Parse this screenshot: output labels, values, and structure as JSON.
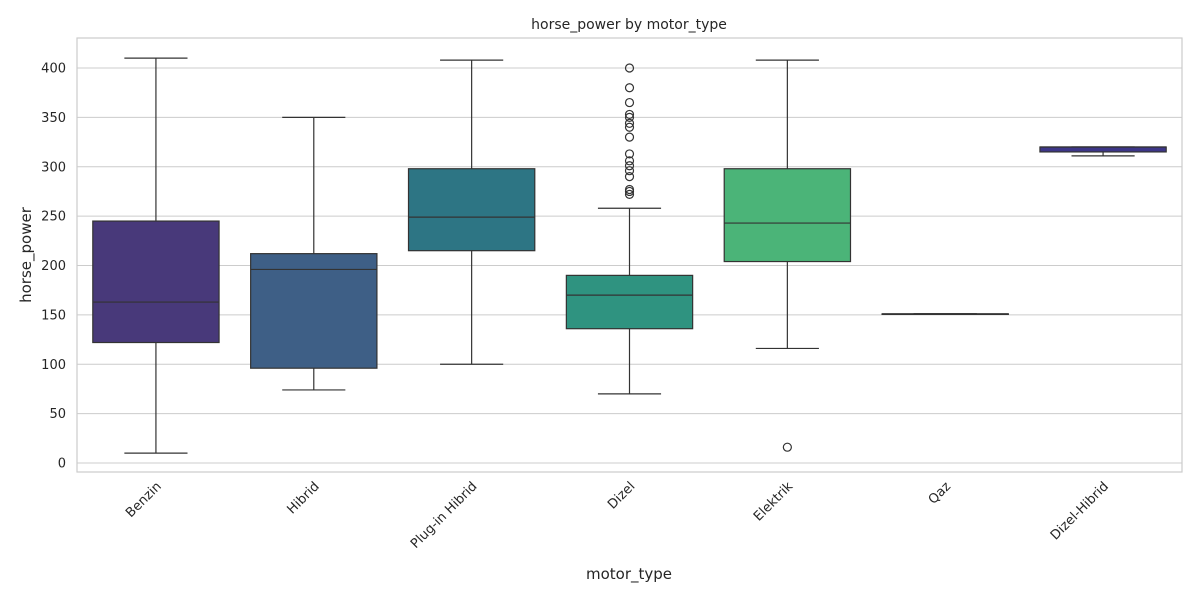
{
  "chart_data": {
    "type": "box",
    "title": "horse_power by motor_type",
    "xlabel": "motor_type",
    "ylabel": "horse_power",
    "ylim": [
      -10,
      430
    ],
    "yticks": [
      0,
      50,
      100,
      150,
      200,
      250,
      300,
      350,
      400
    ],
    "grid": true,
    "categories": [
      "Benzin",
      "Hibrid",
      "Plug-in Hibrid",
      "Dizel",
      "Elektrik",
      "Qaz",
      "Dizel-Hibrid"
    ],
    "boxes": [
      {
        "category": "Benzin",
        "whisker_low": 10,
        "q1": 122,
        "median": 163,
        "q3": 245,
        "whisker_high": 410,
        "outliers": [],
        "color": "#48397a"
      },
      {
        "category": "Hibrid",
        "whisker_low": 74,
        "q1": 96,
        "median": 196,
        "q3": 212,
        "whisker_high": 350,
        "outliers": [],
        "color": "#3e5f86"
      },
      {
        "category": "Plug-in Hibrid",
        "whisker_low": 100,
        "q1": 215,
        "median": 249,
        "q3": 298,
        "whisker_high": 408,
        "outliers": [],
        "color": "#2d7584"
      },
      {
        "category": "Dizel",
        "whisker_low": 70,
        "q1": 136,
        "median": 170,
        "q3": 190,
        "whisker_high": 258,
        "outliers": [
          272,
          275,
          277,
          290,
          296,
          301,
          306,
          313,
          330,
          340,
          344,
          350,
          353,
          365,
          380,
          400
        ],
        "color": "#2f9380"
      },
      {
        "category": "Elektrik",
        "whisker_low": 116,
        "q1": 204,
        "median": 243,
        "q3": 298,
        "whisker_high": 408,
        "outliers": [
          16
        ],
        "color": "#4bb478"
      },
      {
        "category": "Qaz",
        "whisker_low": 151,
        "q1": 151,
        "median": 151,
        "q3": 151,
        "whisker_high": 151,
        "outliers": [],
        "color": "#7c66a8"
      },
      {
        "category": "Dizel-Hibrid",
        "whisker_low": 311,
        "q1": 315,
        "median": 320,
        "q3": 320,
        "whisker_high": 320,
        "outliers": [],
        "color": "#3d3688"
      }
    ]
  }
}
